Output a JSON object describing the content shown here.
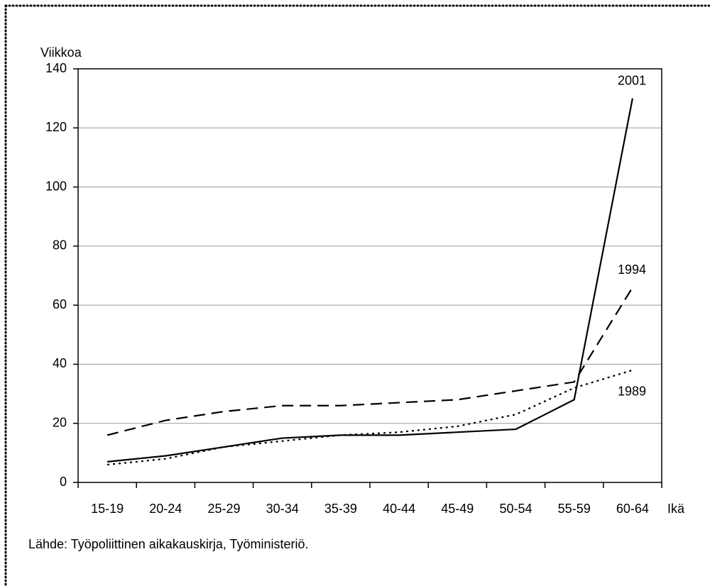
{
  "chart_data": {
    "type": "line",
    "y_label": "Viikkoa",
    "x_label": "Ikä",
    "source": "Lähde: Työpoliittinen aikakauskirja, Työministeriö.",
    "categories": [
      "15-19",
      "20-24",
      "25-29",
      "30-34",
      "35-39",
      "40-44",
      "45-49",
      "50-54",
      "55-59",
      "60-64"
    ],
    "series": [
      {
        "name": "2001",
        "color": "#000000",
        "dash": "solid",
        "values": [
          7,
          9,
          12,
          15,
          16,
          16,
          17,
          18,
          28,
          130
        ]
      },
      {
        "name": "1994",
        "color": "#000000",
        "dash": "dashed",
        "values": [
          16,
          21,
          24,
          26,
          26,
          27,
          28,
          31,
          34,
          66
        ]
      },
      {
        "name": "1989",
        "color": "#000000",
        "dash": "dotted",
        "values": [
          6,
          8,
          12,
          14,
          16,
          17,
          19,
          23,
          32,
          38
        ]
      }
    ],
    "ylim": [
      0,
      140
    ],
    "yticks": [
      0,
      20,
      40,
      60,
      80,
      100,
      120,
      140
    ],
    "grid": true
  }
}
